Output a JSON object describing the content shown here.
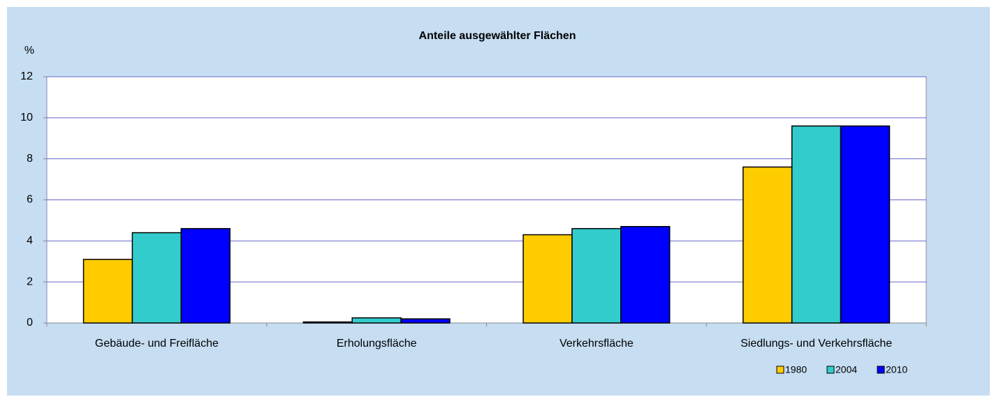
{
  "chart_data": {
    "type": "bar",
    "title": "Anteile ausgewählter Flächen",
    "y_label": "%",
    "categories": [
      "Gebäude- und Freifläche",
      "Erholungsfläche",
      "Verkehrsfläche",
      "Siedlungs- und Verkehrsfläche"
    ],
    "series": [
      {
        "name": "1980",
        "color": "#ffcc00",
        "values": [
          3.1,
          0.05,
          4.3,
          7.6
        ]
      },
      {
        "name": "2004",
        "color": "#33cccc",
        "values": [
          4.4,
          0.25,
          4.6,
          9.6
        ]
      },
      {
        "name": "2010",
        "color": "#0000ff",
        "values": [
          4.6,
          0.2,
          4.7,
          9.6
        ]
      }
    ],
    "ylim": [
      0,
      12
    ],
    "yticks": [
      0,
      2,
      4,
      6,
      8,
      10,
      12
    ],
    "grid": true,
    "legend": "bottom-right"
  }
}
